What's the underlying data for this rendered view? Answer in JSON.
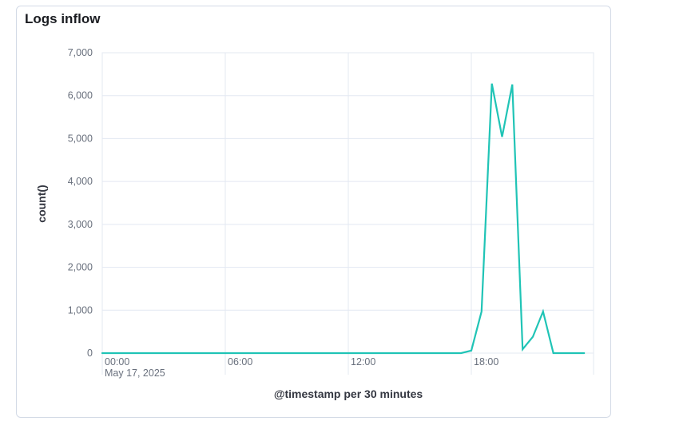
{
  "panel": {
    "title": "Logs inflow"
  },
  "chart_data": {
    "type": "line",
    "title": "",
    "xlabel": "@timestamp per 30 minutes",
    "ylabel": "count()",
    "ylim": [
      0,
      7000
    ],
    "y_ticks": [
      0,
      1000,
      2000,
      3000,
      4000,
      5000,
      6000,
      7000
    ],
    "y_tick_labels": [
      "0",
      "1,000",
      "2,000",
      "3,000",
      "4,000",
      "5,000",
      "6,000",
      "7,000"
    ],
    "x_ticks": [
      {
        "label": "00:00",
        "sublabel": "May 17, 2025",
        "hour": 0
      },
      {
        "label": "06:00",
        "sublabel": "",
        "hour": 6
      },
      {
        "label": "12:00",
        "sublabel": "",
        "hour": 12
      },
      {
        "label": "18:00",
        "sublabel": "",
        "hour": 18
      }
    ],
    "grid": true,
    "series": [
      {
        "color": "#20c4b6",
        "x_hours": [
          0,
          17.5,
          18,
          18.5,
          19,
          19.5,
          20,
          20.5,
          21,
          21.5,
          22,
          22.5,
          23,
          23.5
        ],
        "values": [
          0,
          0,
          60,
          970,
          6280,
          5040,
          6260,
          90,
          380,
          970,
          0,
          0,
          0,
          0
        ]
      }
    ]
  }
}
